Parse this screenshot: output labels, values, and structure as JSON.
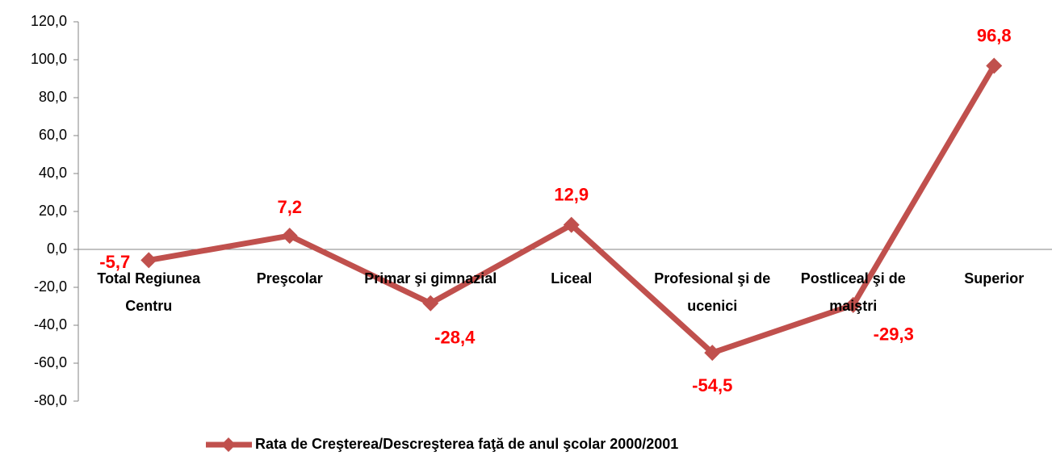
{
  "chart_data": {
    "type": "line",
    "categories": [
      "Total Regiunea Centru",
      "Preşcolar",
      "Primar şi gimnazial",
      "Liceal",
      "Profesional şi de ucenici",
      "Postliceal şi de maiştri",
      "Superior"
    ],
    "series": [
      {
        "name": "Rata de Creşterea/Descreşterea faţă de anul şcolar 2000/2001",
        "color": "#c0504d",
        "values": [
          -5.7,
          7.2,
          -28.4,
          12.9,
          -54.5,
          -29.3,
          96.8
        ],
        "value_labels": [
          "-5,7",
          "7,2",
          "-28,4",
          "12,9",
          "-54,5",
          "-29,3",
          "96,8"
        ]
      }
    ],
    "value_label_color": "#ff0000",
    "ylim": [
      -80,
      120
    ],
    "yticks": [
      {
        "value": -80,
        "label": "-80,0"
      },
      {
        "value": -60,
        "label": "-60,0"
      },
      {
        "value": -40,
        "label": "-40,0"
      },
      {
        "value": -20,
        "label": "-20,0"
      },
      {
        "value": 0,
        "label": "0,0"
      },
      {
        "value": 20,
        "label": "20,0"
      },
      {
        "value": 40,
        "label": "40,0"
      },
      {
        "value": 60,
        "label": "60,0"
      },
      {
        "value": 80,
        "label": "80,0"
      },
      {
        "value": 100,
        "label": "100,0"
      },
      {
        "value": 120,
        "label": "120,0"
      }
    ],
    "grid": false,
    "legend": "bottom"
  }
}
